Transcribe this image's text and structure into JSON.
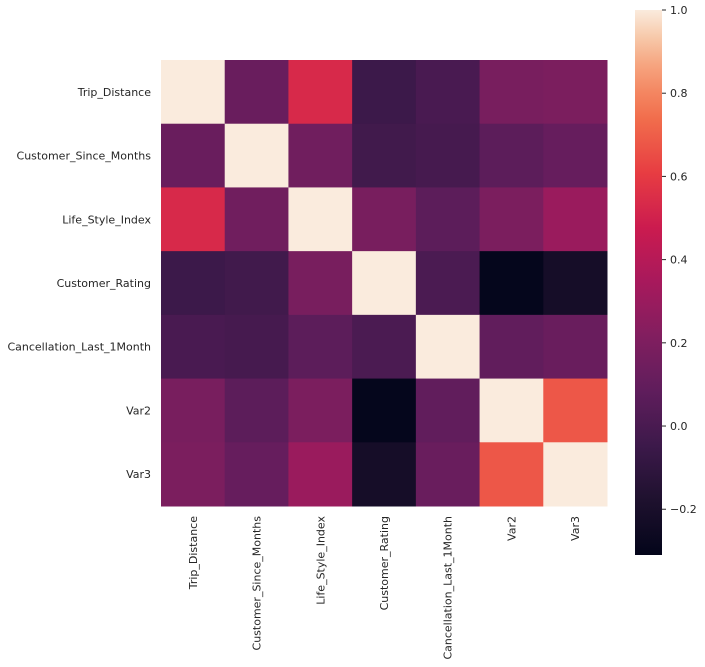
{
  "chart_data": {
    "type": "heatmap",
    "title": "",
    "xlabel": "",
    "ylabel": "",
    "row_labels": [
      "Trip_Distance",
      "Customer_Since_Months",
      "Life_Style_Index",
      "Customer_Rating",
      "Cancellation_Last_1Month",
      "Var2",
      "Var3"
    ],
    "col_labels": [
      "Trip_Distance",
      "Customer_Since_Months",
      "Life_Style_Index",
      "Customer_Rating",
      "Cancellation_Last_1Month",
      "Var2",
      "Var3"
    ],
    "values": [
      [
        1.0,
        0.12,
        0.53,
        -0.05,
        0.0,
        0.18,
        0.19
      ],
      [
        0.12,
        1.0,
        0.15,
        -0.03,
        -0.01,
        0.07,
        0.11
      ],
      [
        0.53,
        0.15,
        1.0,
        0.18,
        0.07,
        0.19,
        0.3
      ],
      [
        -0.05,
        -0.03,
        0.18,
        1.0,
        0.01,
        -0.3,
        -0.22
      ],
      [
        0.0,
        -0.01,
        0.07,
        0.01,
        1.0,
        0.09,
        0.12
      ],
      [
        0.18,
        0.07,
        0.19,
        -0.3,
        0.09,
        1.0,
        0.68
      ],
      [
        0.19,
        0.11,
        0.3,
        -0.22,
        0.12,
        0.68,
        1.0
      ]
    ],
    "colormap": "rocket",
    "colorbar": {
      "range": [
        -0.31,
        1.0
      ],
      "ticks": [
        -0.2,
        0.0,
        0.2,
        0.4,
        0.6,
        0.8,
        1.0
      ],
      "tick_labels": [
        "−0.2",
        "0.0",
        "0.2",
        "0.4",
        "0.6",
        "0.8",
        "1.0"
      ],
      "placement": "right"
    },
    "grid": false,
    "legend": "none"
  }
}
